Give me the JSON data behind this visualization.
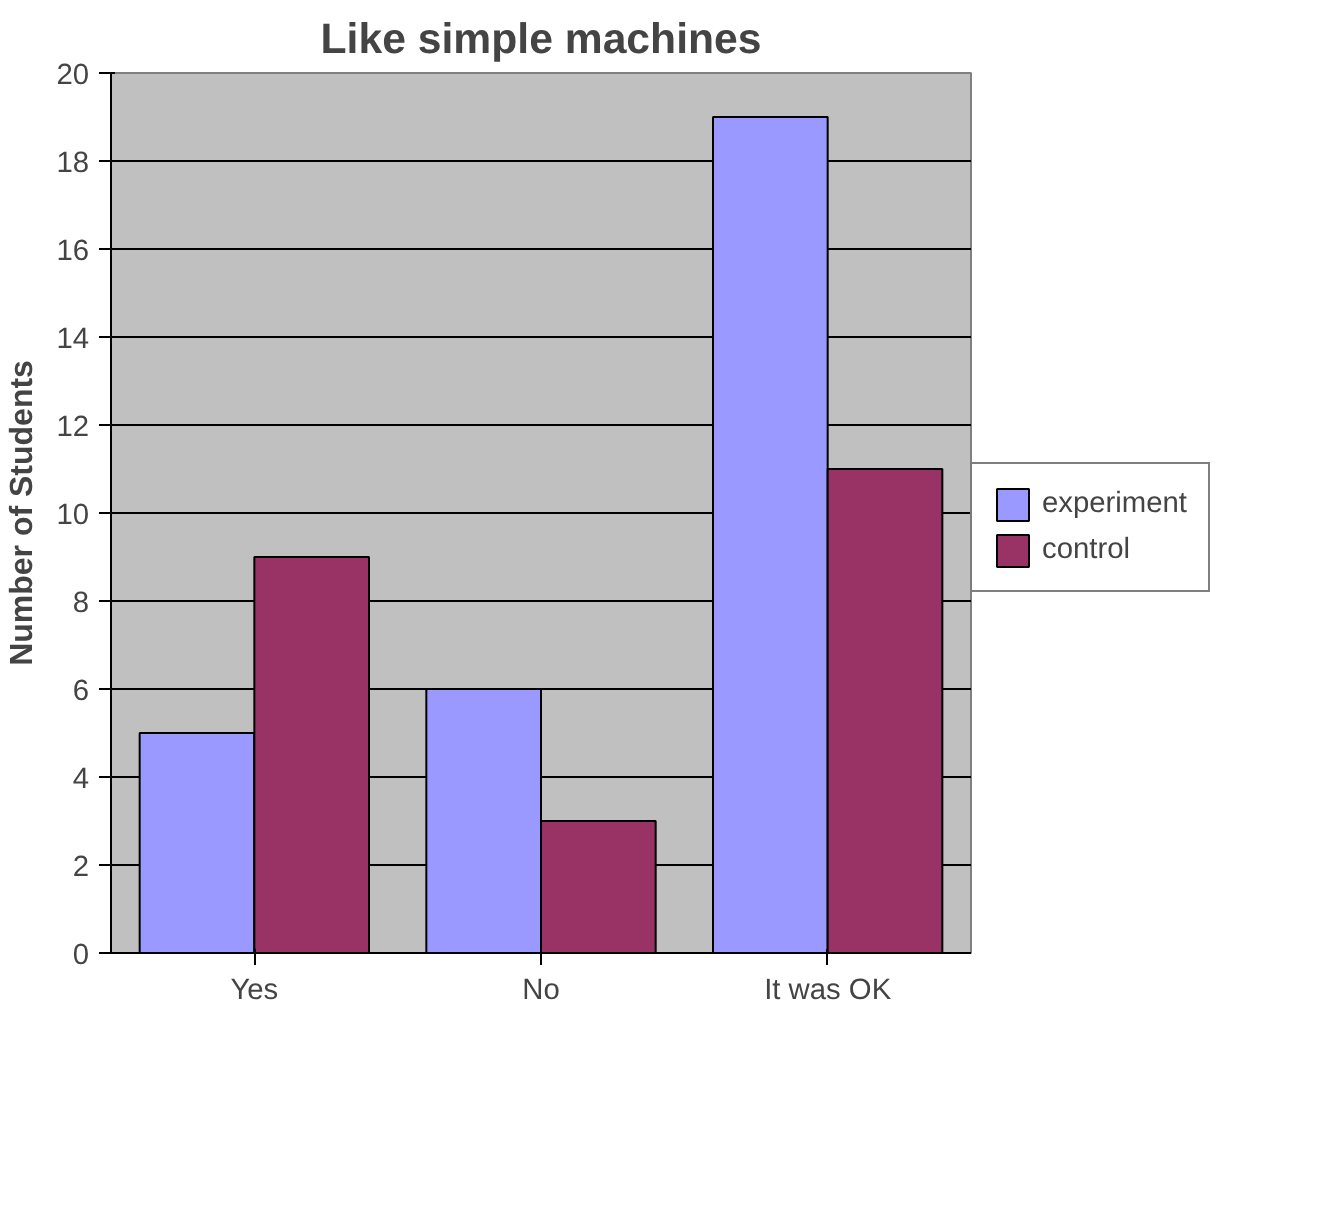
{
  "chart_data": {
    "type": "bar",
    "title": "Like simple machines",
    "ylabel": "Number of Students",
    "categories": [
      "Yes",
      "No",
      "It was OK"
    ],
    "series": [
      {
        "name": "experiment",
        "color": "#9999ff",
        "values": [
          5,
          6,
          19
        ]
      },
      {
        "name": "control",
        "color": "#993366",
        "values": [
          9,
          3,
          11
        ]
      }
    ],
    "ylim": [
      0,
      20
    ],
    "yticks": [
      0,
      2,
      4,
      6,
      8,
      10,
      12,
      14,
      16,
      18,
      20
    ],
    "grid": "y",
    "legend": "right"
  }
}
